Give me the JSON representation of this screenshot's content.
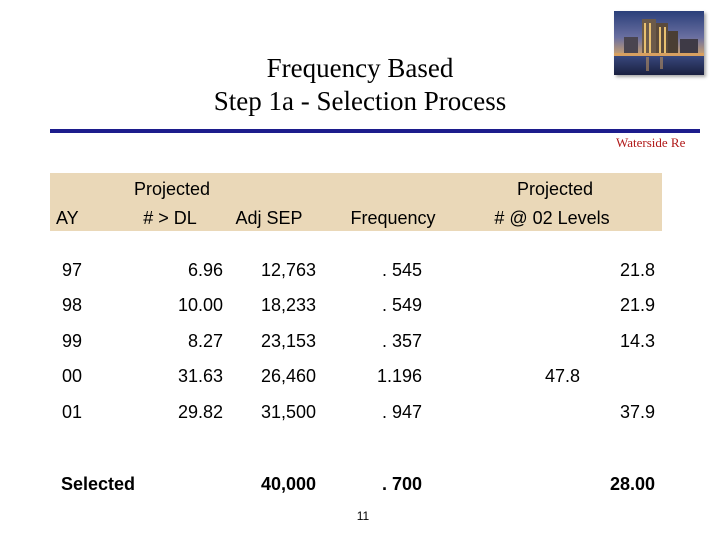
{
  "slide": {
    "title_line1": "Frequency Based",
    "title_line2": "Step 1a - Selection Process",
    "photo_caption": "Waterside Re",
    "page_number": "11"
  },
  "table": {
    "headers": {
      "ay": "AY",
      "dl_top": "Projected",
      "dl_bottom": "# > DL",
      "adj_sep": "Adj SEP",
      "frequency": "Frequency",
      "levels_top": "Projected",
      "levels_bottom": "# @ 02 Levels"
    },
    "rows": [
      {
        "ay": "97",
        "dl": "6.96",
        "sep": "12,763",
        "freq": ". 545",
        "levels": "21.8"
      },
      {
        "ay": "98",
        "dl": "10.00",
        "sep": "18,233",
        "freq": ". 549",
        "levels": "21.9"
      },
      {
        "ay": "99",
        "dl": "8.27",
        "sep": "23,153",
        "freq": ". 357",
        "levels": "14.3"
      },
      {
        "ay": "00",
        "dl": "31.63",
        "sep": "26,460",
        "freq": "1.196",
        "levels": "47.8"
      },
      {
        "ay": "01",
        "dl": "29.82",
        "sep": "31,500",
        "freq": ". 947",
        "levels": "37.9"
      }
    ],
    "selected": {
      "label": "Selected",
      "sep": "40,000",
      "freq": ". 700",
      "levels": "28.00"
    }
  }
}
